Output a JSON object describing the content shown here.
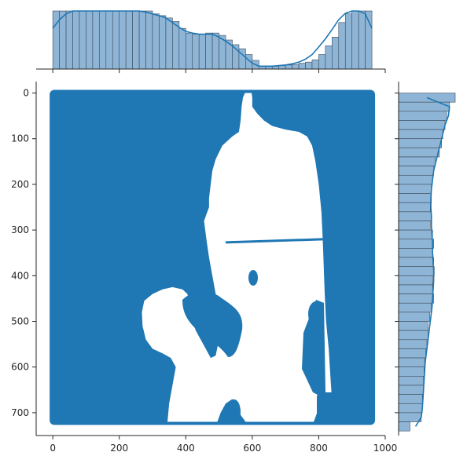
{
  "chart_data": {
    "type": "scatter",
    "subtype": "jointplot",
    "title": "",
    "xlabel": "",
    "ylabel": "",
    "xlim": [
      -50,
      1000
    ],
    "ylim": [
      750,
      -25
    ],
    "y_inverted": true,
    "x_ticks": [
      0,
      200,
      400,
      600,
      800,
      1000
    ],
    "y_ticks": [
      0,
      100,
      200,
      300,
      400,
      500,
      600,
      700
    ],
    "grid": false,
    "legend": null,
    "color": "#1f77b4",
    "hist_fill": "#8fb5d6",
    "points_description": "Dense scatter of points filling the region x 0-960, y 0-720 except a white silhouette (blank area) in the centre; points form a blue mask.",
    "filled_region": {
      "x_range": [
        0,
        960
      ],
      "y_range": [
        0,
        720
      ]
    },
    "blank_regions": [
      {
        "name": "white silhouette",
        "polygon": [
          [
            578,
            0
          ],
          [
            598,
            0
          ],
          [
            600,
            10
          ],
          [
            600,
            30
          ],
          [
            615,
            45
          ],
          [
            635,
            60
          ],
          [
            660,
            72
          ],
          [
            700,
            80
          ],
          [
            740,
            85
          ],
          [
            765,
            95
          ],
          [
            780,
            115
          ],
          [
            790,
            150
          ],
          [
            800,
            200
          ],
          [
            808,
            260
          ],
          [
            812,
            320
          ],
          [
            815,
            380
          ],
          [
            818,
            440
          ],
          [
            822,
            500
          ],
          [
            830,
            560
          ],
          [
            835,
            620
          ],
          [
            840,
            675
          ],
          [
            810,
            690
          ],
          [
            795,
            700
          ],
          [
            785,
            720
          ],
          [
            580,
            720
          ],
          [
            560,
            700
          ],
          [
            555,
            680
          ],
          [
            540,
            670
          ],
          [
            520,
            680
          ],
          [
            505,
            700
          ],
          [
            495,
            720
          ],
          [
            345,
            720
          ],
          [
            350,
            680
          ],
          [
            360,
            640
          ],
          [
            370,
            600
          ],
          [
            355,
            580
          ],
          [
            330,
            570
          ],
          [
            300,
            560
          ],
          [
            280,
            540
          ],
          [
            270,
            510
          ],
          [
            268,
            480
          ],
          [
            275,
            455
          ],
          [
            300,
            440
          ],
          [
            330,
            430
          ],
          [
            360,
            425
          ],
          [
            390,
            430
          ],
          [
            405,
            440
          ],
          [
            415,
            470
          ],
          [
            420,
            500
          ],
          [
            430,
            520
          ],
          [
            445,
            540
          ],
          [
            460,
            560
          ],
          [
            475,
            580
          ],
          [
            490,
            575
          ],
          [
            500,
            540
          ],
          [
            500,
            480
          ],
          [
            490,
            440
          ],
          [
            480,
            400
          ],
          [
            470,
            360
          ],
          [
            462,
            320
          ],
          [
            455,
            280
          ],
          [
            470,
            250
          ],
          [
            470,
            230
          ],
          [
            475,
            200
          ],
          [
            480,
            170
          ],
          [
            490,
            145
          ],
          [
            510,
            115
          ],
          [
            540,
            95
          ],
          [
            560,
            85
          ],
          [
            565,
            60
          ],
          [
            568,
            30
          ],
          [
            572,
            10
          ]
        ]
      }
    ],
    "secondary_blank_region": {
      "name": "inner blue island",
      "polygon": [
        [
          620,
          420
        ],
        [
          630,
          380
        ],
        [
          650,
          360
        ],
        [
          675,
          350
        ],
        [
          700,
          348
        ],
        [
          720,
          360
        ],
        [
          735,
          380
        ],
        [
          745,
          410
        ],
        [
          760,
          440
        ],
        [
          780,
          470
        ],
        [
          790,
          500
        ],
        [
          785,
          540
        ],
        [
          770,
          570
        ],
        [
          740,
          590
        ],
        [
          705,
          600
        ],
        [
          670,
          598
        ],
        [
          640,
          585
        ],
        [
          620,
          560
        ],
        [
          610,
          520
        ],
        [
          612,
          470
        ]
      ]
    },
    "line_segment": {
      "x": [
        520,
        820
      ],
      "y": [
        327,
        320
      ]
    },
    "marginal_x": {
      "type": "histogram",
      "kde": [
        0.7,
        0.85,
        0.95,
        1.0,
        1.0,
        1.0,
        1.0,
        1.0,
        1.0,
        1.0,
        1.0,
        1.0,
        1.0,
        1.0,
        0.98,
        0.95,
        0.92,
        0.88,
        0.8,
        0.72,
        0.65,
        0.62,
        0.6,
        0.6,
        0.6,
        0.55,
        0.48,
        0.4,
        0.3,
        0.2,
        0.1,
        0.05,
        0.05,
        0.05,
        0.06,
        0.07,
        0.09,
        0.12,
        0.17,
        0.25,
        0.38,
        0.52,
        0.68,
        0.85,
        0.96,
        1.0,
        1.0,
        0.95,
        0.7
      ],
      "bins": [
        0,
        20,
        40,
        60,
        80,
        100,
        120,
        140,
        160,
        180,
        200,
        220,
        240,
        260,
        280,
        300,
        320,
        340,
        360,
        380,
        400,
        420,
        440,
        460,
        480,
        500,
        520,
        540,
        560,
        580,
        600,
        620,
        640,
        660,
        680,
        700,
        720,
        740,
        760,
        780,
        800,
        820,
        840,
        860,
        880,
        900,
        920,
        940,
        960
      ],
      "counts": [
        1.0,
        1.0,
        1.0,
        1.0,
        1.0,
        1.0,
        1.0,
        1.0,
        1.0,
        1.0,
        1.0,
        1.0,
        1.0,
        1.0,
        1.0,
        0.95,
        0.92,
        0.88,
        0.82,
        0.7,
        0.62,
        0.6,
        0.6,
        0.62,
        0.62,
        0.58,
        0.5,
        0.42,
        0.35,
        0.25,
        0.15,
        0.05,
        0.05,
        0.05,
        0.06,
        0.07,
        0.08,
        0.1,
        0.12,
        0.16,
        0.25,
        0.4,
        0.55,
        0.8,
        0.95,
        1.0,
        1.0,
        1.0
      ]
    },
    "marginal_y": {
      "type": "histogram",
      "kde": [
        0.5,
        0.9,
        0.88,
        0.82,
        0.78,
        0.74,
        0.7,
        0.66,
        0.62,
        0.6,
        0.58,
        0.57,
        0.57,
        0.58,
        0.58,
        0.59,
        0.6,
        0.6,
        0.61,
        0.62,
        0.62,
        0.61,
        0.6,
        0.59,
        0.57,
        0.55,
        0.53,
        0.51,
        0.49,
        0.47,
        0.46,
        0.45,
        0.44,
        0.43,
        0.42,
        0.4,
        0.3
      ],
      "bins": [
        0,
        20,
        40,
        60,
        80,
        100,
        120,
        140,
        160,
        180,
        200,
        220,
        240,
        260,
        280,
        300,
        320,
        340,
        360,
        380,
        400,
        420,
        440,
        460,
        480,
        500,
        520,
        540,
        560,
        580,
        600,
        620,
        640,
        660,
        680,
        700,
        720
      ],
      "counts": [
        1.0,
        0.9,
        0.85,
        0.82,
        0.78,
        0.76,
        0.72,
        0.65,
        0.62,
        0.6,
        0.58,
        0.58,
        0.56,
        0.58,
        0.56,
        0.6,
        0.62,
        0.6,
        0.62,
        0.63,
        0.6,
        0.6,
        0.62,
        0.58,
        0.55,
        0.52,
        0.52,
        0.5,
        0.48,
        0.46,
        0.45,
        0.44,
        0.44,
        0.42,
        0.42,
        0.4,
        0.2
      ]
    }
  }
}
